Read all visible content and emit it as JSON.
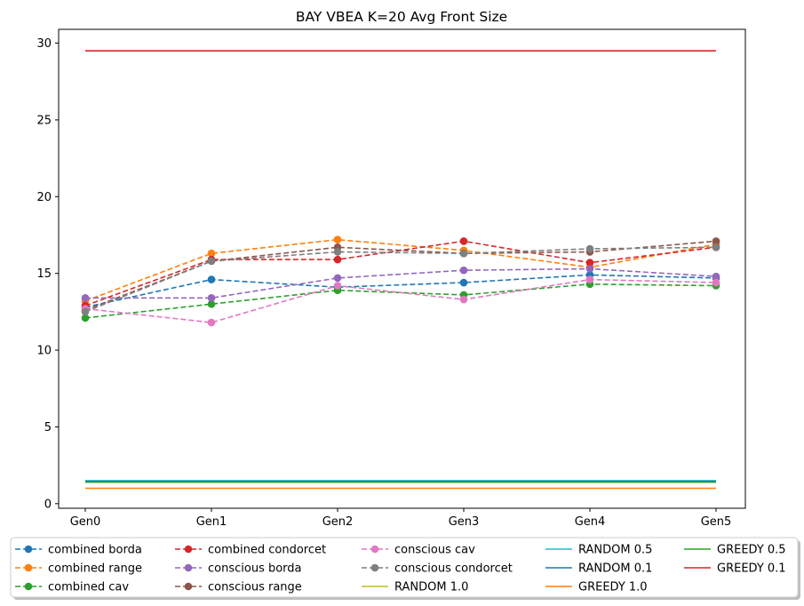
{
  "chart_data": {
    "type": "line",
    "title": "BAY VBEA K=20 Avg Front Size",
    "xlabel": "",
    "ylabel": "",
    "categories": [
      "Gen0",
      "Gen1",
      "Gen2",
      "Gen3",
      "Gen4",
      "Gen5"
    ],
    "ylim": [
      -0.3,
      30.9
    ],
    "yticks": [
      0,
      5,
      10,
      15,
      20,
      25,
      30
    ],
    "grid": false,
    "legend_placement": "bottom (below plot)",
    "series": [
      {
        "name": "combined borda",
        "color": "#1f77b4",
        "style": "dashed-marker",
        "values": [
          12.8,
          14.6,
          14.1,
          14.4,
          14.9,
          14.7
        ]
      },
      {
        "name": "combined range",
        "color": "#ff7f0e",
        "style": "dashed-marker",
        "values": [
          13.2,
          16.3,
          17.2,
          16.5,
          15.4,
          16.9
        ]
      },
      {
        "name": "combined cav",
        "color": "#2ca02c",
        "style": "dashed-marker",
        "values": [
          12.1,
          13.0,
          13.9,
          13.6,
          14.3,
          14.2
        ]
      },
      {
        "name": "combined condorcet",
        "color": "#d62728",
        "style": "dashed-marker",
        "values": [
          12.9,
          15.9,
          15.9,
          17.1,
          15.7,
          16.7
        ]
      },
      {
        "name": "conscious borda",
        "color": "#9467bd",
        "style": "dashed-marker",
        "values": [
          13.4,
          13.4,
          14.7,
          15.2,
          15.3,
          14.8
        ]
      },
      {
        "name": "conscious range",
        "color": "#8c564b",
        "style": "dashed-marker",
        "values": [
          12.6,
          15.8,
          16.7,
          16.3,
          16.4,
          17.1
        ]
      },
      {
        "name": "conscious cav",
        "color": "#e377c2",
        "style": "dashed-marker",
        "values": [
          12.7,
          11.8,
          14.2,
          13.3,
          14.6,
          14.4
        ]
      },
      {
        "name": "conscious condorcet",
        "color": "#7f7f7f",
        "style": "dashed-marker",
        "values": [
          12.5,
          15.8,
          16.4,
          16.3,
          16.6,
          16.7
        ]
      },
      {
        "name": "RANDOM 1.0",
        "color": "#bcbd22",
        "style": "solid",
        "values": [
          1.4,
          1.4,
          1.4,
          1.4,
          1.4,
          1.4
        ]
      },
      {
        "name": "RANDOM 0.5",
        "color": "#17becf",
        "style": "solid",
        "values": [
          1.5,
          1.5,
          1.5,
          1.5,
          1.5,
          1.5
        ]
      },
      {
        "name": "RANDOM 0.1",
        "color": "#1f77b4",
        "style": "solid",
        "values": [
          1.45,
          1.45,
          1.45,
          1.45,
          1.45,
          1.45
        ]
      },
      {
        "name": "GREEDY 1.0",
        "color": "#ff7f0e",
        "style": "solid",
        "values": [
          1.0,
          1.0,
          1.0,
          1.0,
          1.0,
          1.0
        ]
      },
      {
        "name": "GREEDY 0.5",
        "color": "#2ca02c",
        "style": "solid",
        "values": [
          1.4,
          1.4,
          1.4,
          1.4,
          1.4,
          1.4
        ]
      },
      {
        "name": "GREEDY 0.1",
        "color": "#d62728",
        "style": "solid",
        "values": [
          29.5,
          29.5,
          29.5,
          29.5,
          29.5,
          29.5
        ]
      }
    ]
  }
}
